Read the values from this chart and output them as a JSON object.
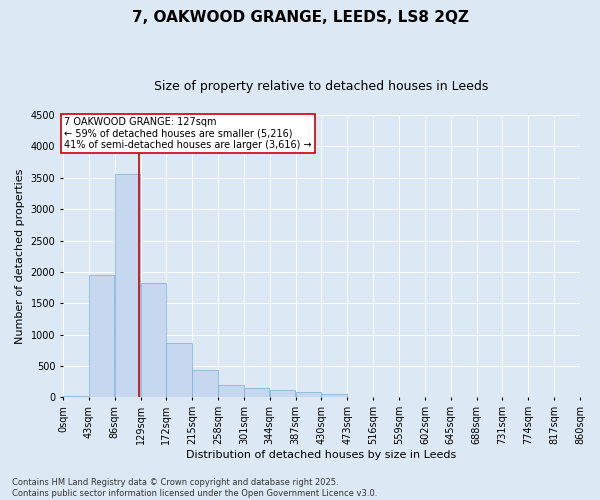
{
  "title": "7, OAKWOOD GRANGE, LEEDS, LS8 2QZ",
  "subtitle": "Size of property relative to detached houses in Leeds",
  "xlabel": "Distribution of detached houses by size in Leeds",
  "ylabel": "Number of detached properties",
  "bin_labels": [
    "0sqm",
    "43sqm",
    "86sqm",
    "129sqm",
    "172sqm",
    "215sqm",
    "258sqm",
    "301sqm",
    "344sqm",
    "387sqm",
    "430sqm",
    "473sqm",
    "516sqm",
    "559sqm",
    "602sqm",
    "645sqm",
    "688sqm",
    "731sqm",
    "774sqm",
    "817sqm",
    "860sqm"
  ],
  "bin_edges": [
    0,
    43,
    86,
    129,
    172,
    215,
    258,
    301,
    344,
    387,
    430,
    473,
    516,
    559,
    602,
    645,
    688,
    731,
    774,
    817,
    860
  ],
  "bar_values": [
    30,
    1950,
    3560,
    1830,
    870,
    440,
    195,
    155,
    125,
    90,
    55,
    10,
    0,
    0,
    0,
    0,
    0,
    0,
    0,
    0
  ],
  "bar_color": "#c5d8f0",
  "bar_edgecolor": "#7aadd4",
  "property_line_x": 127,
  "property_line_color": "#cc0000",
  "annotation_text": "7 OAKWOOD GRANGE: 127sqm\n← 59% of detached houses are smaller (5,216)\n41% of semi-detached houses are larger (3,616) →",
  "annotation_box_facecolor": "#ffffff",
  "annotation_box_edgecolor": "#cc0000",
  "ylim": [
    0,
    4500
  ],
  "yticks": [
    0,
    500,
    1000,
    1500,
    2000,
    2500,
    3000,
    3500,
    4000,
    4500
  ],
  "background_color": "#dce9f5",
  "plot_background_color": "#dce9f5",
  "grid_color": "#ffffff",
  "footer_line1": "Contains HM Land Registry data © Crown copyright and database right 2025.",
  "footer_line2": "Contains public sector information licensed under the Open Government Licence v3.0.",
  "title_fontsize": 11,
  "subtitle_fontsize": 9,
  "axis_label_fontsize": 8,
  "tick_fontsize": 7,
  "annotation_fontsize": 7,
  "footer_fontsize": 6
}
